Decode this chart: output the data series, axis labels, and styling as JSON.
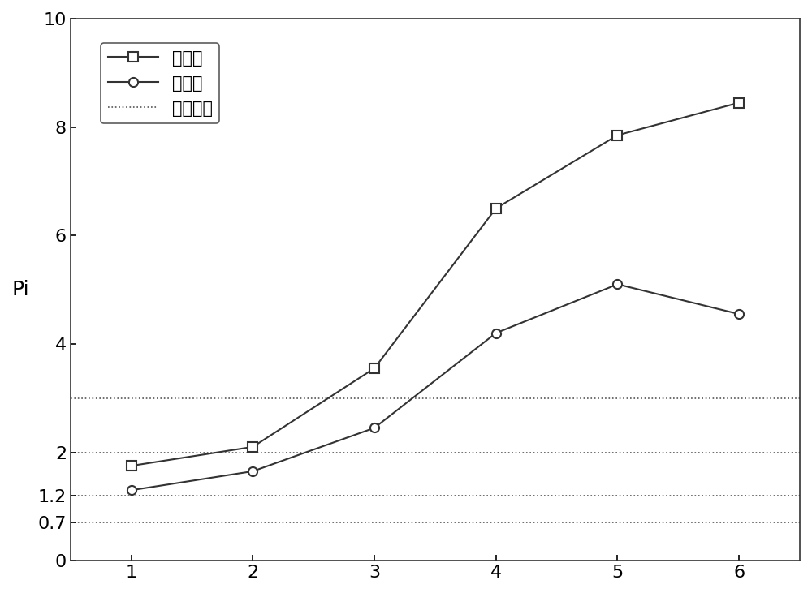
{
  "x": [
    1,
    2,
    3,
    4,
    5,
    6
  ],
  "before": [
    1.75,
    2.1,
    3.55,
    6.5,
    7.85,
    8.45
  ],
  "after": [
    1.3,
    1.65,
    2.45,
    4.2,
    5.1,
    4.55
  ],
  "hlines": [
    0.7,
    1.2,
    2.0,
    3.0
  ],
  "ylabel": "Pi",
  "ylim": [
    0,
    10
  ],
  "xlim": [
    0.5,
    6.5
  ],
  "xticks": [
    1,
    2,
    3,
    4,
    5,
    6
  ],
  "yticks_main": [
    0,
    2,
    4,
    6,
    8,
    10
  ],
  "yticks_extra": [
    0.7,
    1.2
  ],
  "legend_before": "改进前",
  "legend_after": "改进后",
  "legend_hline": "分级标准",
  "line_color": "#333333",
  "hline_color": "#555555",
  "background_color": "#ffffff",
  "marker_size": 8,
  "line_width": 1.5,
  "fontsize": 16,
  "legend_fontsize": 15
}
